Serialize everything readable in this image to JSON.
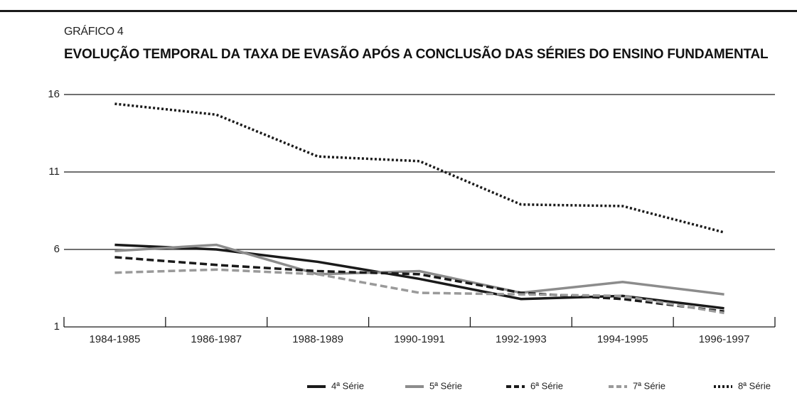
{
  "chart_data": {
    "type": "line",
    "subtitle": "GRÁFICO 4",
    "title": "EVOLUÇÃO TEMPORAL DA TAXA DE EVASÃO  APÓS A CONCLUSÃO DAS SÉRIES DO ENSINO FUNDAMENTAL",
    "categories": [
      "1984-1985",
      "1986-1987",
      "1988-1989",
      "1990-1991",
      "1992-1993",
      "1994-1995",
      "1996-1997"
    ],
    "ylim": [
      1,
      16
    ],
    "yticks": [
      1,
      6,
      11,
      16
    ],
    "grid": true,
    "series": [
      {
        "name": "4ª Série",
        "color": "#1a1a1a",
        "dash": "solid",
        "values": [
          6.3,
          6.0,
          5.2,
          4.1,
          2.8,
          3.0,
          2.2
        ]
      },
      {
        "name": "5ª Série",
        "color": "#8c8c8c",
        "dash": "solid",
        "values": [
          5.9,
          6.3,
          4.4,
          4.6,
          3.2,
          3.9,
          3.1
        ]
      },
      {
        "name": "6ª Série",
        "color": "#1a1a1a",
        "dash": "dashed",
        "values": [
          5.5,
          5.0,
          4.6,
          4.4,
          3.2,
          2.8,
          2.0
        ]
      },
      {
        "name": "7ª Série",
        "color": "#9a9a9a",
        "dash": "dashed",
        "values": [
          4.5,
          4.7,
          4.4,
          3.2,
          3.1,
          3.0,
          1.9
        ]
      },
      {
        "name": "8ª Série",
        "color": "#1a1a1a",
        "dash": "dotted",
        "values": [
          15.4,
          14.7,
          12.0,
          11.7,
          8.9,
          8.8,
          7.1
        ]
      }
    ]
  }
}
